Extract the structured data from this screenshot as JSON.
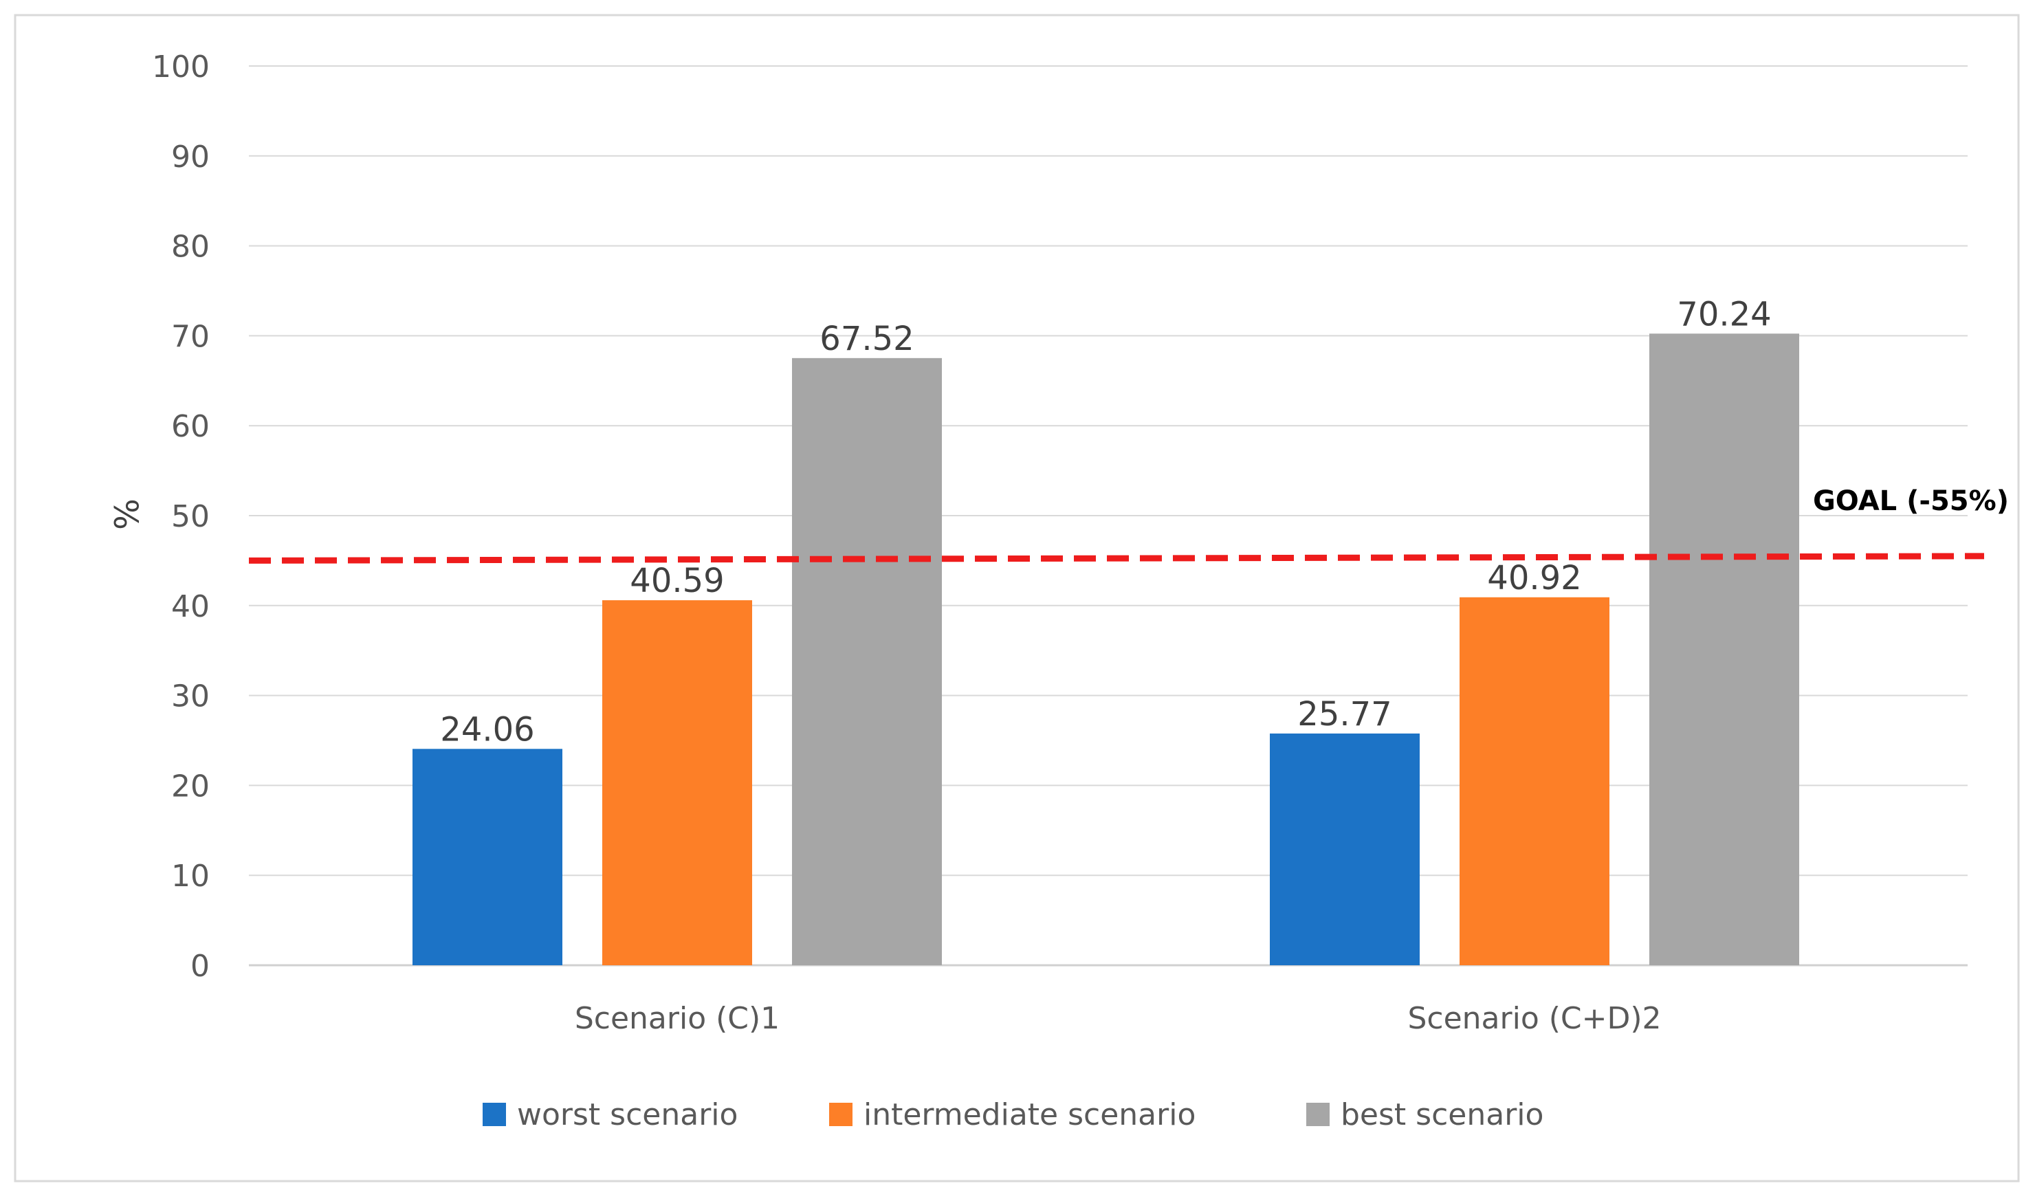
{
  "chart_data": {
    "type": "bar",
    "title": "",
    "xlabel": "",
    "ylabel": "%",
    "ylim": [
      0,
      100
    ],
    "yticks": [
      0,
      10,
      20,
      30,
      40,
      50,
      60,
      70,
      80,
      90,
      100
    ],
    "gridlines": true,
    "legend_position": "bottom",
    "categories": [
      "Scenario (C)1",
      "Scenario (C+D)2"
    ],
    "series": [
      {
        "name": "worst scenario",
        "color": "#1c73c6",
        "values": [
          24.06,
          25.77
        ],
        "labels": [
          "24.06",
          "25.77"
        ]
      },
      {
        "name": "intermediate scenario",
        "color": "#fd7f27",
        "values": [
          40.59,
          40.92
        ],
        "labels": [
          "40.59",
          "40.92"
        ]
      },
      {
        "name": "best scenario",
        "color": "#a6a6a6",
        "values": [
          67.52,
          70.24
        ],
        "labels": [
          "67.52",
          "70.24"
        ]
      }
    ],
    "goal_line": {
      "label": "GOAL (-55%)",
      "value_start": 45,
      "value_end": 45.5,
      "color": "#ee1c1c",
      "style": "dashed"
    }
  }
}
